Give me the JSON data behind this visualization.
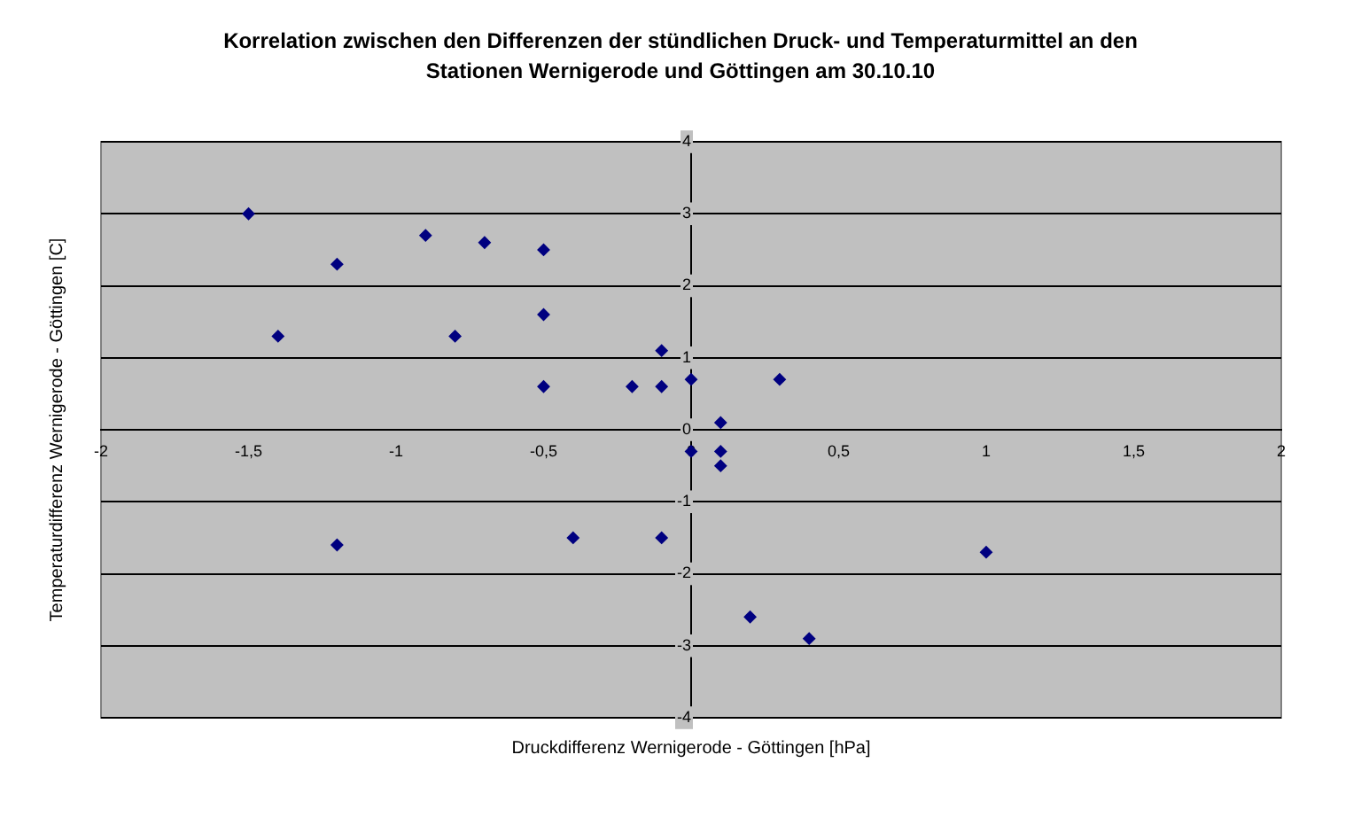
{
  "chart_data": {
    "type": "scatter",
    "title": "Korrelation zwischen den Differenzen der stündlichen Druck- und Temperaturmittel an den Stationen Wernigerode und Göttingen am 30.10.10",
    "xlabel": "Druckdifferenz Wernigerode - Göttingen [hPa]",
    "ylabel": "Temperaturdifferenz Wernigerode - Göttingen [C]",
    "series": [
      {
        "color": "#000080",
        "x": [
          -1.5,
          -1.2,
          -1.4,
          -0.9,
          -0.7,
          -0.5,
          -0.5,
          -0.8,
          -0.5,
          -0.2,
          -0.1,
          -0.1,
          0,
          0.3,
          0.1,
          0,
          0.1,
          0.1,
          -1.2,
          -0.4,
          -0.1,
          1,
          0.2,
          0.4
        ],
        "values": [
          3,
          2.3,
          1.3,
          2.7,
          2.6,
          2.5,
          1.6,
          1.3,
          0.6,
          0.6,
          0.6,
          1.1,
          0.7,
          0.7,
          0.1,
          -0.3,
          -0.3,
          -0.5,
          -1.6,
          -1.5,
          -1.5,
          -1.7,
          -2.6,
          -2.9
        ]
      }
    ],
    "xlim": [
      -2,
      2
    ],
    "xticks": [
      -2,
      {
        "value": -1.5,
        "label": "-1,5"
      },
      -1,
      {
        "value": -0.5,
        "label": "-0,5"
      },
      0,
      {
        "value": 0.5,
        "label": "0,5"
      },
      1,
      {
        "value": 1.5,
        "label": "1,5"
      },
      2
    ],
    "ylim": [
      -4,
      4
    ],
    "yticks": [
      -4,
      -3,
      -2,
      -1,
      0,
      1,
      2,
      3,
      4
    ],
    "grid": "y",
    "marker": "diamond",
    "legend": false
  }
}
